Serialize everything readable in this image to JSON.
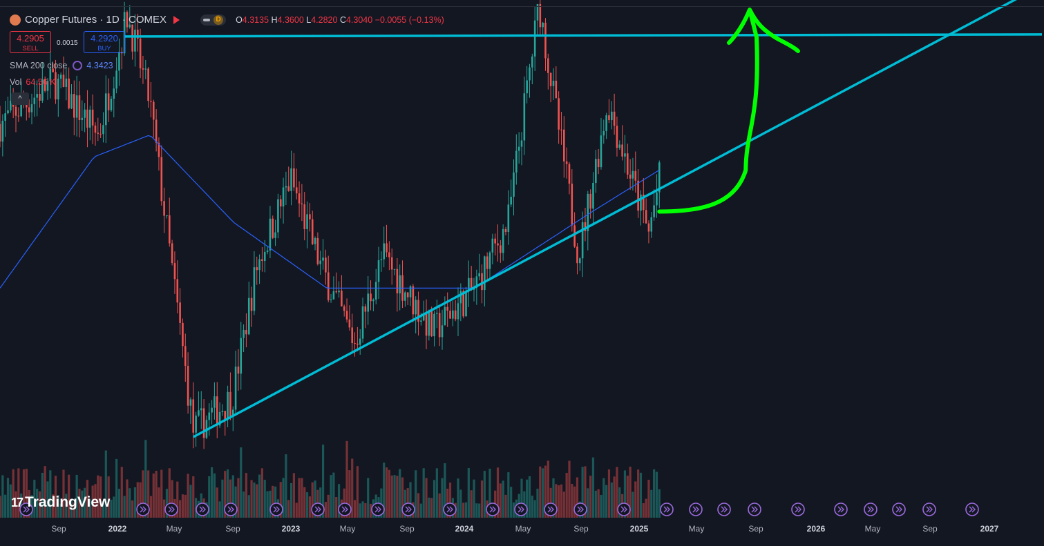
{
  "header": {
    "title": "Copper Futures · 1D · COMEX",
    "badge": "D",
    "ohlc": [
      {
        "label": "O",
        "value": "4.3135"
      },
      {
        "label": "H",
        "value": "4.3600"
      },
      {
        "label": "L",
        "value": "4.2820"
      },
      {
        "label": "C",
        "value": "4.3040"
      }
    ],
    "change": "−0.0055 (−0.13%)"
  },
  "trade": {
    "sell_price": "4.2905",
    "sell_label": "SELL",
    "spread": "0.0015",
    "buy_price": "4.2920",
    "buy_label": "BUY"
  },
  "indicators": {
    "sma_label": "SMA 200 close",
    "sma_value": "4.3423",
    "vol_label": "Vol",
    "vol_value": "64.56 K",
    "collapse_icon": "^"
  },
  "brand": {
    "name": "TradingView",
    "mark": "17"
  },
  "colors": {
    "background": "#131722",
    "up": "#26a69a",
    "down": "#ef5350",
    "sma": "#2962ff",
    "trendline": "#00bcd4",
    "drawing": "#00ff00"
  },
  "chart_data": {
    "type": "candlestick",
    "symbol": "Copper Futures",
    "interval": "1D",
    "x_range": [
      "2021-07",
      "2027-02"
    ],
    "x_ticks": [
      "Sep",
      "2022",
      "May",
      "Sep",
      "2023",
      "May",
      "Sep",
      "2024",
      "May",
      "Sep",
      "2025",
      "May",
      "Sep",
      "2026",
      "May",
      "Sep",
      "2027"
    ],
    "last_bar": "2025-01",
    "price_path": [
      {
        "date": "2021-07-01",
        "price": 4.55
      },
      {
        "date": "2021-10-15",
        "price": 4.75
      },
      {
        "date": "2022-01-10",
        "price": 4.5
      },
      {
        "date": "2022-03-07",
        "price": 5.05
      },
      {
        "date": "2022-04-20",
        "price": 4.65
      },
      {
        "date": "2022-07-14",
        "price": 3.15
      },
      {
        "date": "2022-09-28",
        "price": 3.3
      },
      {
        "date": "2022-11-15",
        "price": 3.9
      },
      {
        "date": "2023-01-20",
        "price": 4.3
      },
      {
        "date": "2023-03-20",
        "price": 3.9
      },
      {
        "date": "2023-05-25",
        "price": 3.55
      },
      {
        "date": "2023-07-20",
        "price": 3.95
      },
      {
        "date": "2023-10-25",
        "price": 3.6
      },
      {
        "date": "2024-01-15",
        "price": 3.8
      },
      {
        "date": "2024-03-20",
        "price": 4.1
      },
      {
        "date": "2024-05-20",
        "price": 5.1
      },
      {
        "date": "2024-08-05",
        "price": 3.95
      },
      {
        "date": "2024-10-01",
        "price": 4.65
      },
      {
        "date": "2024-12-20",
        "price": 4.05
      },
      {
        "date": "2025-01-10",
        "price": 4.3
      }
    ],
    "sma_200": [
      {
        "date": "2021-07-01",
        "price": 3.8
      },
      {
        "date": "2022-01-01",
        "price": 4.4
      },
      {
        "date": "2022-04-20",
        "price": 4.5
      },
      {
        "date": "2022-10-01",
        "price": 4.1
      },
      {
        "date": "2023-04-01",
        "price": 3.8
      },
      {
        "date": "2024-01-15",
        "price": 3.8
      },
      {
        "date": "2024-09-01",
        "price": 4.15
      },
      {
        "date": "2025-01-10",
        "price": 4.34
      }
    ],
    "volume_bars": 250,
    "drawings": [
      {
        "kind": "horizontal_line",
        "name": "resistance",
        "price": 4.95
      },
      {
        "kind": "trendline",
        "name": "rising_support",
        "from": {
          "date": "2022-07-14",
          "price": 3.12
        },
        "to": {
          "date": "2027-02-01",
          "price": 5.15
        }
      },
      {
        "kind": "arrow",
        "name": "projected_path",
        "from": {
          "date": "2025-01-10",
          "price": 4.15
        },
        "to": {
          "date": "2025-09-15",
          "price": 5.55
        }
      }
    ]
  }
}
